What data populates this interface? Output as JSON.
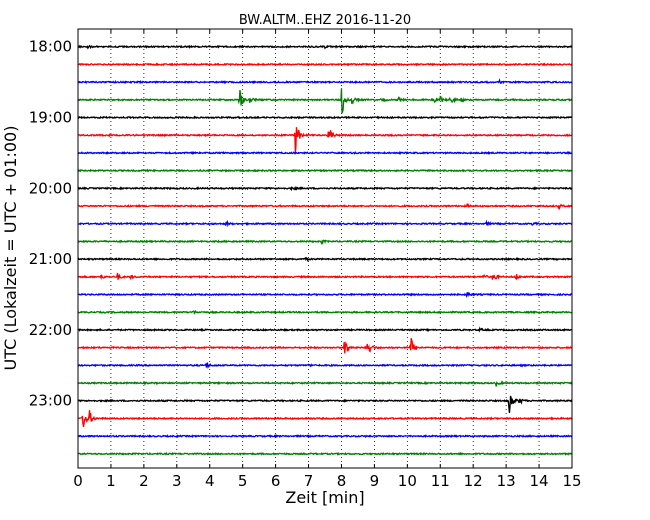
{
  "chart_data": {
    "type": "line",
    "title": "BW.ALTM..EHZ 2016-11-20",
    "xlabel": "Zeit  [min]",
    "ylabel": "UTC (Lokalzeit = UTC + 01:00)",
    "xlim": [
      0,
      15
    ],
    "x_ticks": [
      "0",
      "1",
      "2",
      "3",
      "4",
      "5",
      "6",
      "7",
      "8",
      "9",
      "10",
      "11",
      "12",
      "13",
      "14",
      "15"
    ],
    "y_ticks": [
      {
        "label": "18:00",
        "hour": 18.0
      },
      {
        "label": "19:00",
        "hour": 19.0
      },
      {
        "label": "20:00",
        "hour": 20.0
      },
      {
        "label": "21:00",
        "hour": 21.0
      },
      {
        "label": "22:00",
        "hour": 22.0
      },
      {
        "label": "23:00",
        "hour": 23.0
      }
    ],
    "ylim_hours": [
      17.75,
      23.95
    ],
    "grid": "vertical dotted",
    "trace_colors": [
      "#000000",
      "#ff0000",
      "#0000ff",
      "#008000"
    ],
    "traces": [
      {
        "start": "18:00",
        "events": [
          {
            "minute": 0.3,
            "amp": 0.08
          },
          {
            "minute": 7.5,
            "amp": 0.08
          }
        ]
      },
      {
        "start": "18:15",
        "events": []
      },
      {
        "start": "18:30",
        "events": [
          {
            "minute": 12.8,
            "amp": 0.1
          }
        ]
      },
      {
        "start": "18:45",
        "events": [
          {
            "minute": 4.9,
            "amp": 0.9
          },
          {
            "minute": 5.2,
            "amp": 0.3
          },
          {
            "minute": 8.0,
            "amp": 1.4
          },
          {
            "minute": 8.3,
            "amp": 0.5
          },
          {
            "minute": 9.2,
            "amp": 0.25
          },
          {
            "minute": 9.7,
            "amp": 0.2
          },
          {
            "minute": 10.8,
            "amp": 0.2
          },
          {
            "minute": 11.0,
            "amp": 0.25
          },
          {
            "minute": 11.3,
            "amp": 0.35
          },
          {
            "minute": 11.6,
            "amp": 0.2
          }
        ]
      },
      {
        "start": "19:00",
        "events": []
      },
      {
        "start": "19:15",
        "events": [
          {
            "minute": 6.6,
            "amp": 1.4
          },
          {
            "minute": 7.6,
            "amp": 0.8
          }
        ]
      },
      {
        "start": "19:30",
        "events": []
      },
      {
        "start": "19:45",
        "events": []
      },
      {
        "start": "20:00",
        "events": [
          {
            "minute": 6.5,
            "amp": 0.1
          }
        ]
      },
      {
        "start": "20:15",
        "events": [
          {
            "minute": 11.8,
            "amp": 0.1
          },
          {
            "minute": 14.6,
            "amp": 0.15
          }
        ]
      },
      {
        "start": "20:30",
        "events": [
          {
            "minute": 4.5,
            "amp": 0.15
          },
          {
            "minute": 12.4,
            "amp": 0.1
          },
          {
            "minute": 13.8,
            "amp": 0.1
          }
        ]
      },
      {
        "start": "20:45",
        "events": [
          {
            "minute": 7.4,
            "amp": 0.1
          }
        ]
      },
      {
        "start": "21:00",
        "events": [
          {
            "minute": 6.9,
            "amp": 0.08
          }
        ]
      },
      {
        "start": "21:15",
        "events": [
          {
            "minute": 0.7,
            "amp": 0.15
          },
          {
            "minute": 1.2,
            "amp": 0.25
          },
          {
            "minute": 1.6,
            "amp": 0.15
          },
          {
            "minute": 12.3,
            "amp": 0.25
          },
          {
            "minute": 12.6,
            "amp": 0.4
          },
          {
            "minute": 13.3,
            "amp": 0.2
          }
        ]
      },
      {
        "start": "21:30",
        "events": [
          {
            "minute": 11.8,
            "amp": 0.2
          }
        ]
      },
      {
        "start": "21:45",
        "events": [
          {
            "minute": 3.5,
            "amp": 0.1
          }
        ]
      },
      {
        "start": "22:00",
        "events": [
          {
            "minute": 12.2,
            "amp": 0.08
          }
        ]
      },
      {
        "start": "22:15",
        "events": [
          {
            "minute": 8.1,
            "amp": 0.9
          },
          {
            "minute": 8.8,
            "amp": 0.9
          },
          {
            "minute": 10.1,
            "amp": 0.9
          }
        ]
      },
      {
        "start": "22:30",
        "events": [
          {
            "minute": 3.9,
            "amp": 0.2
          },
          {
            "minute": 7.0,
            "amp": 0.1
          }
        ]
      },
      {
        "start": "22:45",
        "events": [
          {
            "minute": 12.7,
            "amp": 0.2
          }
        ]
      },
      {
        "start": "23:00",
        "events": [
          {
            "minute": 13.1,
            "amp": 1.0
          },
          {
            "minute": 13.4,
            "amp": 0.2
          }
        ]
      },
      {
        "start": "23:15",
        "events": [
          {
            "minute": 0.15,
            "amp": 0.9
          },
          {
            "minute": 0.35,
            "amp": 0.5
          }
        ]
      },
      {
        "start": "23:30",
        "events": []
      },
      {
        "start": "23:45",
        "events": []
      }
    ]
  }
}
